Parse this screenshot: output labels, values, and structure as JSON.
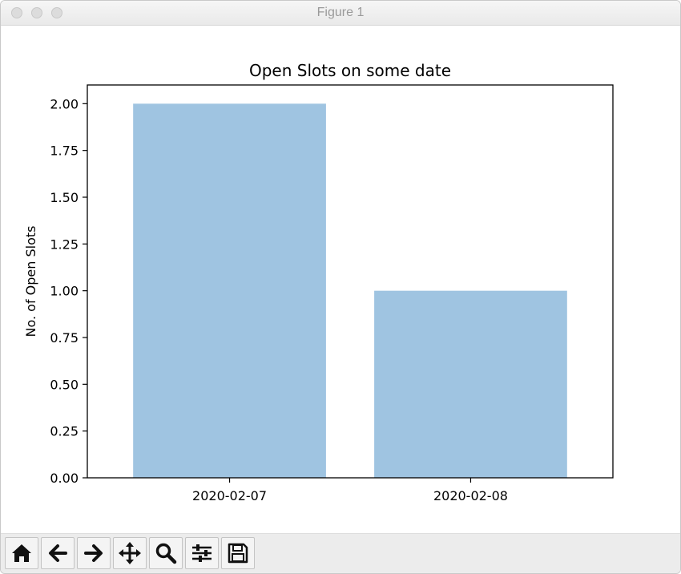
{
  "window": {
    "title": "Figure 1"
  },
  "toolbar": {
    "buttons": [
      {
        "name": "home-button",
        "icon": "home-icon"
      },
      {
        "name": "back-button",
        "icon": "arrow-left-icon"
      },
      {
        "name": "forward-button",
        "icon": "arrow-right-icon"
      },
      {
        "name": "pan-button",
        "icon": "move-icon"
      },
      {
        "name": "zoom-button",
        "icon": "magnifier-icon"
      },
      {
        "name": "configure-subplots-button",
        "icon": "sliders-icon"
      },
      {
        "name": "save-button",
        "icon": "floppy-disk-icon"
      }
    ]
  },
  "chart_data": {
    "type": "bar",
    "title": "Open Slots on some date",
    "xlabel": "",
    "ylabel": "No. of Open Slots",
    "categories": [
      "2020-02-07",
      "2020-02-08"
    ],
    "values": [
      2,
      1
    ],
    "ylim": [
      0,
      2.1
    ],
    "yticks": [
      "0.00",
      "0.25",
      "0.50",
      "0.75",
      "1.00",
      "1.25",
      "1.50",
      "1.75",
      "2.00"
    ],
    "bar_color": "#9fc4e1",
    "grid": false,
    "legend": "none"
  }
}
